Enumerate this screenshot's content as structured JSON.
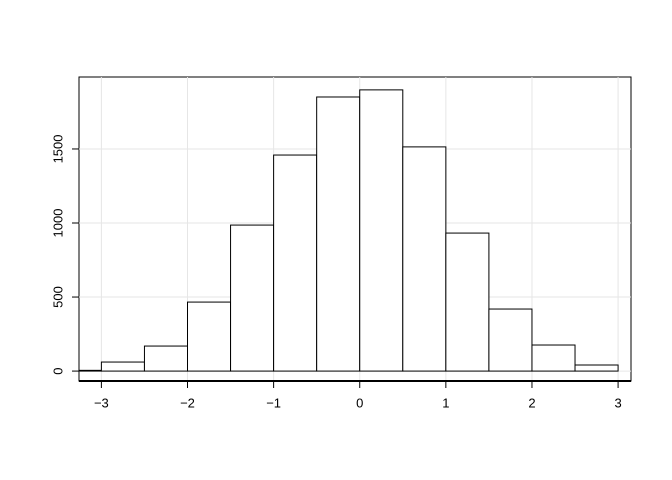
{
  "chart_data": {
    "type": "histogram",
    "bins": [
      -3.5,
      -3,
      -2.5,
      -2,
      -1.5,
      -1,
      -0.5,
      0,
      0.5,
      1,
      1.5,
      2,
      2.5,
      3
    ],
    "values": [
      5,
      61,
      169,
      466,
      986,
      1459,
      1851,
      1899,
      1514,
      932,
      419,
      176,
      41
    ],
    "color": "#ffffff",
    "edgecolor": "#000000",
    "xlim": [
      -3.26,
      3.15
    ],
    "xticks": [
      {
        "value": -3,
        "label": "−3"
      },
      {
        "value": -2,
        "label": "−2"
      },
      {
        "value": -1,
        "label": "−1"
      },
      0,
      1,
      2,
      3
    ],
    "ylim": [
      -67,
      1986
    ],
    "yticks": [
      0,
      500,
      1000,
      1500
    ],
    "grid": true
  }
}
